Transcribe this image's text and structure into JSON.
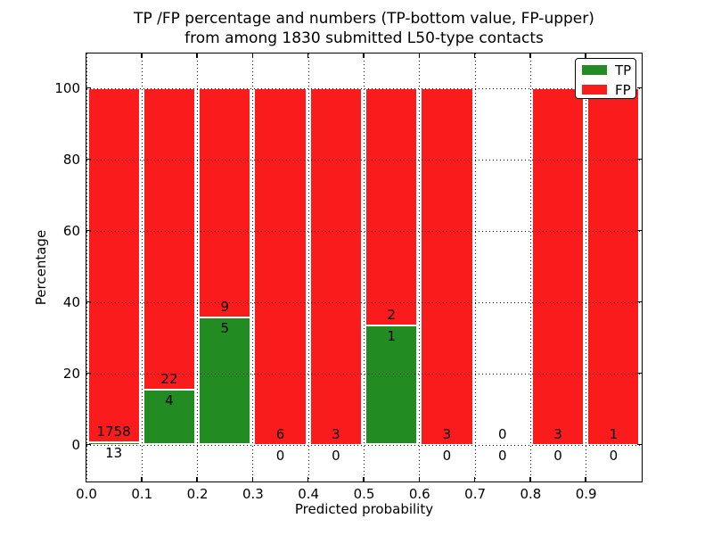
{
  "title": {
    "line1": "TP /FP percentage and numbers (TP-bottom value, FP-upper)",
    "line2": "from among 1830 submitted L50-type contacts"
  },
  "axes": {
    "xlabel": "Predicted probability",
    "ylabel": "Percentage"
  },
  "legend": {
    "items": [
      {
        "label": "TP",
        "color": "#228B22"
      },
      {
        "label": "FP",
        "color": "#FA1C1C"
      }
    ]
  },
  "chart_data": {
    "type": "bar",
    "stacked": true,
    "title": "TP /FP percentage and numbers (TP-bottom value, FP-upper) from among 1830 submitted L50-type contacts",
    "xlabel": "Predicted probability",
    "ylabel": "Percentage",
    "xlim": [
      0,
      1
    ],
    "ylim": [
      -10.25,
      109.75
    ],
    "xticks": [
      0.0,
      0.1,
      0.2,
      0.3,
      0.4,
      0.5,
      0.6,
      0.7,
      0.8,
      0.9
    ],
    "xtick_labels": [
      "0.0",
      "0.1",
      "0.2",
      "0.3",
      "0.4",
      "0.5",
      "0.6",
      "0.7",
      "0.8",
      "0.9"
    ],
    "yticks": [
      0,
      20,
      40,
      60,
      80,
      100
    ],
    "grid": true,
    "legend_position": "upper right",
    "bin_width": 0.1,
    "bins": [
      0.0,
      0.1,
      0.2,
      0.3,
      0.4,
      0.5,
      0.6,
      0.7,
      0.8,
      0.9
    ],
    "series": [
      {
        "name": "TP",
        "color": "#228B22",
        "counts": [
          13,
          4,
          5,
          0,
          0,
          1,
          0,
          0,
          0,
          0
        ]
      },
      {
        "name": "FP",
        "color": "#FA1C1C",
        "counts": [
          1758,
          22,
          9,
          6,
          3,
          2,
          3,
          0,
          3,
          1
        ]
      }
    ],
    "tp_pct": [
      0.73,
      15.38,
      35.71,
      0,
      0,
      33.33,
      0,
      0,
      0,
      0
    ],
    "total_pct": [
      100,
      100,
      100,
      100,
      100,
      100,
      100,
      0,
      100,
      100
    ],
    "total_contacts": 1830
  }
}
